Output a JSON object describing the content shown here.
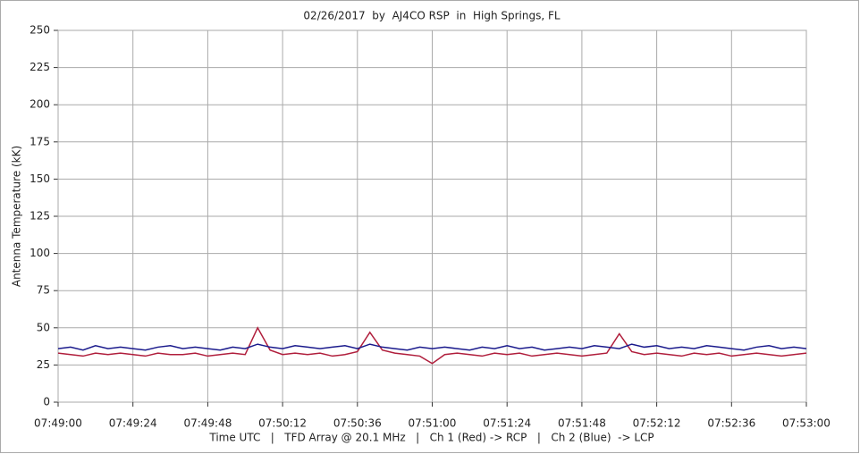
{
  "chart_data": {
    "type": "line",
    "title": "02/26/2017  by  AJ4CO RSP  in  High Springs, FL",
    "y_label": "Antenna Temperature (kK)",
    "x_label": "Time UTC   |   TFD Array @ 20.1 MHz   |   Ch 1 (Red) -> RCP   |   Ch 2 (Blue)  -> LCP",
    "x": [
      "07:49:00",
      "07:49:04",
      "07:49:08",
      "07:49:12",
      "07:49:16",
      "07:49:20",
      "07:49:24",
      "07:49:28",
      "07:49:32",
      "07:49:36",
      "07:49:40",
      "07:49:44",
      "07:49:48",
      "07:49:52",
      "07:49:56",
      "07:50:00",
      "07:50:04",
      "07:50:08",
      "07:50:12",
      "07:50:16",
      "07:50:20",
      "07:50:24",
      "07:50:28",
      "07:50:32",
      "07:50:36",
      "07:50:40",
      "07:50:44",
      "07:50:48",
      "07:50:52",
      "07:50:56",
      "07:51:00",
      "07:51:04",
      "07:51:08",
      "07:51:12",
      "07:51:16",
      "07:51:20",
      "07:51:24",
      "07:51:28",
      "07:51:32",
      "07:51:36",
      "07:51:40",
      "07:51:44",
      "07:51:48",
      "07:51:52",
      "07:51:56",
      "07:52:00",
      "07:52:04",
      "07:52:08",
      "07:52:12",
      "07:52:16",
      "07:52:20",
      "07:52:24",
      "07:52:28",
      "07:52:32",
      "07:52:36",
      "07:52:40",
      "07:52:44",
      "07:52:48",
      "07:52:52",
      "07:52:56",
      "07:53:00"
    ],
    "series": [
      {
        "name": "Ch 2 (Blue)",
        "color": "#1a1a8c",
        "values": [
          36,
          37,
          35,
          38,
          36,
          37,
          36,
          35,
          37,
          38,
          36,
          37,
          36,
          35,
          37,
          36,
          39,
          37,
          36,
          38,
          37,
          36,
          37,
          38,
          36,
          39,
          37,
          36,
          35,
          37,
          36,
          37,
          36,
          35,
          37,
          36,
          38,
          36,
          37,
          35,
          36,
          37,
          36,
          38,
          37,
          36,
          39,
          37,
          38,
          36,
          37,
          36,
          38,
          37,
          36,
          35,
          37,
          38,
          36,
          37,
          36
        ]
      },
      {
        "name": "Ch 1 (Red)",
        "color": "#b01e3c",
        "values": [
          33,
          32,
          31,
          33,
          32,
          33,
          32,
          31,
          33,
          32,
          32,
          33,
          31,
          32,
          33,
          32,
          50,
          35,
          32,
          33,
          32,
          33,
          31,
          32,
          34,
          47,
          35,
          33,
          32,
          31,
          26,
          32,
          33,
          32,
          31,
          33,
          32,
          33,
          31,
          32,
          33,
          32,
          31,
          32,
          33,
          46,
          34,
          32,
          33,
          32,
          31,
          33,
          32,
          33,
          31,
          32,
          33,
          32,
          31,
          32,
          33
        ]
      }
    ],
    "xlim": [
      "07:49:00",
      "07:53:00"
    ],
    "xticks": [
      "07:49:00",
      "07:49:24",
      "07:49:48",
      "07:50:12",
      "07:50:36",
      "07:51:00",
      "07:51:24",
      "07:51:48",
      "07:52:12",
      "07:52:36",
      "07:53:00"
    ],
    "ylim": [
      0,
      250
    ],
    "yticks": [
      0,
      25,
      50,
      75,
      100,
      125,
      150,
      175,
      200,
      225,
      250
    ],
    "grid": true
  }
}
